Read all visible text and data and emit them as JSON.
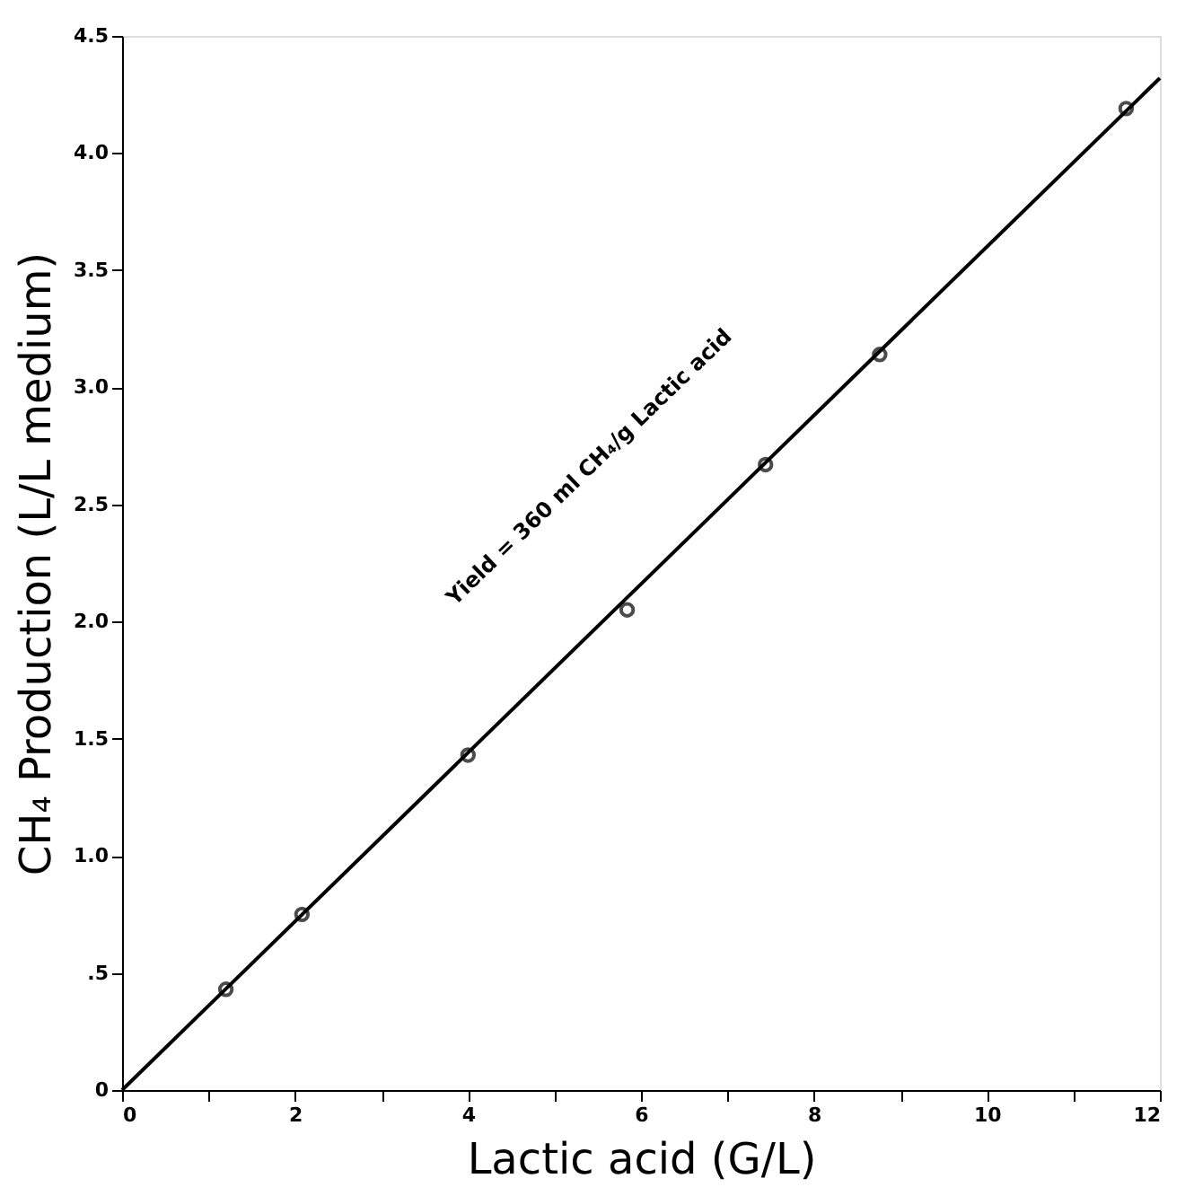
{
  "chart_data": {
    "type": "scatter",
    "xlabel": "Lactic acid (G/L)",
    "ylabel": "CH₄ Production (L/L medium)",
    "xlim": [
      0,
      12
    ],
    "ylim": [
      0,
      4.5
    ],
    "xticks": [
      0,
      {
        "value": 1,
        "label": null
      },
      2,
      {
        "value": 3,
        "label": null
      },
      4,
      {
        "value": 5,
        "label": null
      },
      6,
      {
        "value": 7,
        "label": null
      },
      8,
      {
        "value": 9,
        "label": null
      },
      10,
      {
        "value": 11,
        "label": null
      },
      12
    ],
    "yticks": [
      0,
      {
        "value": 0.5,
        "label": ".5"
      },
      {
        "value": 1,
        "label": "1.0"
      },
      1.5,
      {
        "value": 2,
        "label": "2.0"
      },
      2.5,
      {
        "value": 3,
        "label": "3.0"
      },
      3.5,
      {
        "value": 4,
        "label": "4.0"
      },
      4.5
    ],
    "grid": false,
    "series": [
      {
        "marker": "circle",
        "color": "#000000",
        "x": [
          1.2,
          2.08,
          4.0,
          5.84,
          7.44,
          8.76,
          11.61
        ],
        "values": [
          0.43,
          0.75,
          1.43,
          2.05,
          2.67,
          3.14,
          4.19
        ]
      },
      {
        "type": "line",
        "color": "#000000",
        "x": [
          0,
          12
        ],
        "values": [
          0,
          4.32
        ],
        "line_style": "solid"
      }
    ],
    "annotations": [
      "Yield = 360 ml CH₄/g Lactic acid"
    ]
  }
}
